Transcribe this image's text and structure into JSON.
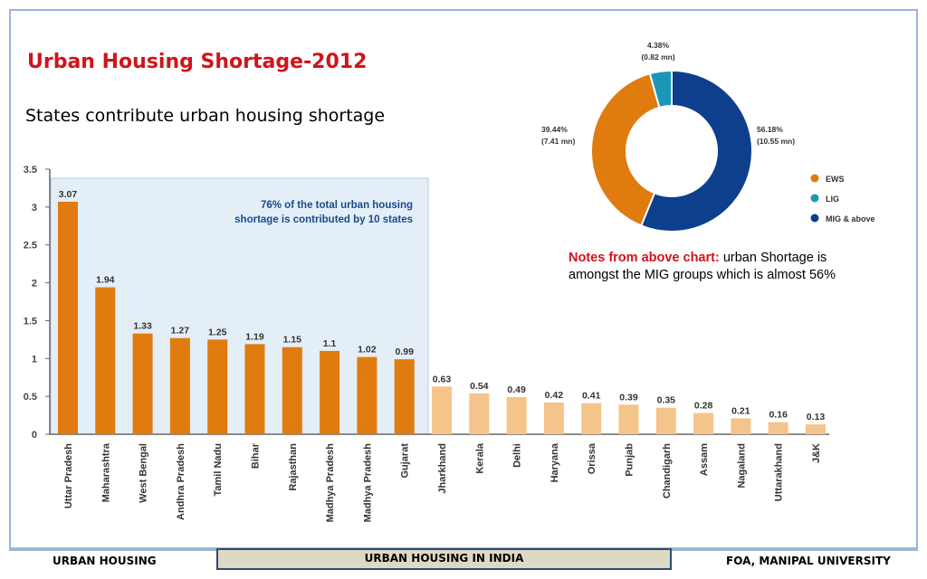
{
  "slide": {
    "title": "Urban Housing Shortage-2012",
    "subtitle": "States contribute urban housing shortage",
    "notes_label": "Notes from above chart:",
    "notes_text": "urban Shortage is amongst the MIG groups which is almost 56%"
  },
  "footer": {
    "left": "URBAN HOUSING",
    "center": "URBAN HOUSING  IN INDIA",
    "right": "FOA, MANIPAL UNIVERSITY"
  },
  "colors": {
    "orange": "#e07b10",
    "light_orange": "#f4c48a",
    "teal": "#1b96b9",
    "navy": "#0d3f8c",
    "highlight_box": "#e3eef7",
    "title_red": "#d0141b"
  },
  "chart_data": [
    {
      "type": "bar",
      "title": "",
      "annotation": [
        "76% of the total urban housing",
        "shortage is contributed by 10 states"
      ],
      "categories": [
        "Uttar Pradesh",
        "Maharashtra",
        "West Bengal",
        "Andhra Pradesh",
        "Tamil Nadu",
        "Bihar",
        "Rajasthan",
        "Madhya Pradesh",
        "Madhya Pradesh",
        "Gujarat",
        "Jharkhand",
        "Kerala",
        "Delhi",
        "Haryana",
        "Orissa",
        "Punjab",
        "Chandigarh",
        "Assam",
        "Nagaland",
        "Uttarakhand",
        "J&K"
      ],
      "values": [
        3.07,
        1.94,
        1.33,
        1.27,
        1.25,
        1.19,
        1.15,
        1.1,
        1.02,
        0.99,
        0.63,
        0.54,
        0.49,
        0.42,
        0.41,
        0.39,
        0.35,
        0.28,
        0.21,
        0.16,
        0.13
      ],
      "value_labels": [
        "3.07",
        "1.94",
        "1.33",
        "1.27",
        "1.25",
        "1.19",
        "1.15",
        "1.1",
        "1.02",
        "0.99",
        "0.63",
        "0.54",
        "0.49",
        "0.42",
        "0.41",
        "0.39",
        "0.35",
        "0.28",
        "0.21",
        "0.16",
        "0.13"
      ],
      "highlighted_count": 10,
      "yticks": [
        "0",
        "0.5",
        "1",
        "1.5",
        "2",
        "2.5",
        "3",
        "3.5"
      ],
      "ylim": [
        0,
        3.5
      ],
      "xlabel": "",
      "ylabel": "",
      "grid": false
    },
    {
      "type": "pie",
      "donut": true,
      "title": "",
      "series": [
        {
          "name": "EWS",
          "value": 39.44,
          "label_pct": "39.44%",
          "label_mn": "(7.41 mn)",
          "color": "#e07b10"
        },
        {
          "name": "LIG",
          "value": 4.38,
          "label_pct": "4.38%",
          "label_mn": "(0.82 mn)",
          "color": "#1b96b9"
        },
        {
          "name": "MIG & above",
          "value": 56.18,
          "label_pct": "56.18%",
          "label_mn": "(10.55 mn)",
          "color": "#0d3f8c"
        }
      ],
      "legend_position": "right"
    }
  ]
}
